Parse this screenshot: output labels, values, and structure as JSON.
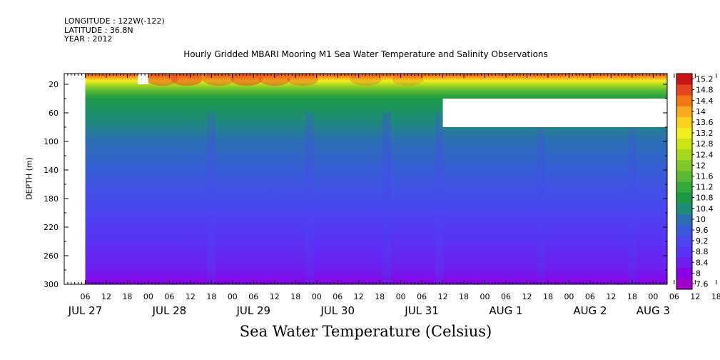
{
  "meta": {
    "longitude": "LONGITUDE : 122W(-122)",
    "latitude": "LATITUDE : 36.8N",
    "year": "YEAR : 2012"
  },
  "chart_data": {
    "type": "heatmap",
    "title": "Hourly Gridded MBARI Mooring M1 Sea Water Temperature and Salinity Observations",
    "xlabel": "Sea Water Temperature (Celsius)",
    "ylabel": "DEPTH (m)",
    "y_axis": {
      "range": [
        5,
        300
      ],
      "inverted": true,
      "ticks": [
        20,
        60,
        100,
        140,
        180,
        220,
        260,
        300
      ]
    },
    "x_axis": {
      "range_hours": [
        0,
        172
      ],
      "hour_ticks": [
        "06",
        "12",
        "18",
        "00",
        "06",
        "12",
        "18",
        "00",
        "06",
        "12",
        "18",
        "00",
        "06",
        "12",
        "18",
        "00",
        "06",
        "12",
        "18",
        "00",
        "06",
        "12",
        "18",
        "00",
        "06",
        "12",
        "18",
        "00",
        "06",
        "12",
        "18",
        "00"
      ],
      "day_labels": [
        "JUL 27",
        "JUL 28",
        "JUL 29",
        "JUL 30",
        "JUL 31",
        "AUG  1",
        "AUG  2",
        "AUG  3"
      ]
    },
    "colorbar": {
      "levels": [
        7.6,
        8,
        8.4,
        8.8,
        9.2,
        9.6,
        10,
        10.4,
        10.8,
        11.2,
        11.6,
        12,
        12.4,
        12.8,
        13.2,
        13.6,
        14,
        14.4,
        14.8,
        15.2
      ],
      "labels": [
        "15.2",
        "14.8",
        "14.4",
        "14",
        "13.6",
        "13.2",
        "12.8",
        "12.4",
        "12",
        "11.6",
        "11.2",
        "10.8",
        "10.4",
        "10",
        "9.6",
        "9.2",
        "8.8",
        "8.4",
        "8",
        "7.6"
      ],
      "colors": [
        "#a000c8",
        "#8a00e6",
        "#6e1ef0",
        "#5a32f5",
        "#4a46f0",
        "#3a5adc",
        "#2c6eb4",
        "#1e8c78",
        "#1a9a46",
        "#34aa3c",
        "#5aba34",
        "#80c828",
        "#a6d61e",
        "#cce614",
        "#f0f01e",
        "#f8d21e",
        "#f8aa1e",
        "#f07814",
        "#e6461e",
        "#c81414"
      ]
    },
    "data_gaps": [
      {
        "time_hours": [
          0,
          6
        ],
        "depth": [
          5,
          300
        ]
      },
      {
        "time_hours": [
          21,
          24
        ],
        "depth": [
          5,
          20
        ]
      },
      {
        "time_hours": [
          108,
          172
        ],
        "depth": [
          40,
          80
        ]
      }
    ]
  }
}
